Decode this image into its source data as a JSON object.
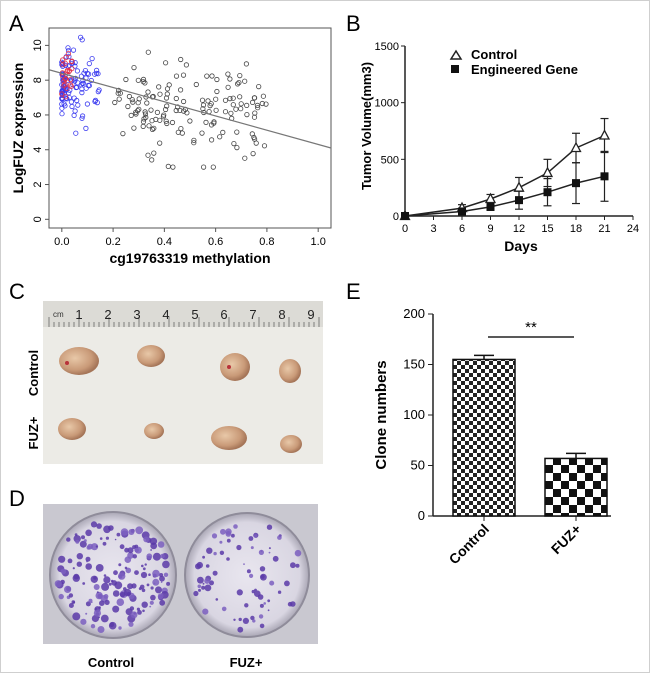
{
  "panel_labels": {
    "a": "A",
    "b": "B",
    "c": "C",
    "d": "D",
    "e": "E"
  },
  "chart_data": [
    {
      "panel": "A",
      "type": "scatter",
      "xlabel": "cg19763319 methylation",
      "ylabel": "LogFUZ expression",
      "xlim": [
        -0.05,
        1.05
      ],
      "ylim": [
        -0.5,
        11
      ],
      "xticks": [
        "0.0",
        "0.2",
        "0.4",
        "0.6",
        "0.8",
        "1.0"
      ],
      "yticks": [
        "0",
        "2",
        "4",
        "6",
        "8",
        "10"
      ],
      "regression": {
        "x": [
          -0.05,
          1.05
        ],
        "y": [
          8.6,
          4.1
        ]
      },
      "series": [
        {
          "name": "cluster_low",
          "color": "#3a3af0",
          "n": 110,
          "x_range": [
            0.0,
            0.15
          ],
          "y_mean": 8.0,
          "y_sd": 1.1
        },
        {
          "name": "cluster_red",
          "color": "#e0304a",
          "n": 25,
          "x_range": [
            0.0,
            0.04
          ],
          "y_mean": 8.2,
          "y_sd": 0.6
        },
        {
          "name": "cluster_high",
          "color": "#444444",
          "n": 150,
          "x_range": [
            0.2,
            0.8
          ],
          "y_mean": 6.5,
          "y_sd": 1.3
        }
      ]
    },
    {
      "panel": "B",
      "type": "line",
      "xlabel": "Days",
      "ylabel": "Tumor Volume(mm3)",
      "x": [
        0,
        6,
        9,
        12,
        15,
        18,
        21
      ],
      "xticks": [
        "0",
        "3",
        "6",
        "9",
        "12",
        "15",
        "18",
        "21",
        "24"
      ],
      "yticks": [
        "0",
        "500",
        "1000",
        "1500"
      ],
      "xlim": [
        0,
        24
      ],
      "ylim": [
        0,
        1500
      ],
      "series": [
        {
          "name": "Control",
          "marker": "triangle",
          "values": [
            0,
            70,
            150,
            250,
            380,
            600,
            710
          ],
          "errors": [
            0,
            30,
            40,
            90,
            120,
            130,
            150
          ]
        },
        {
          "name": "Engineered Gene",
          "marker": "square",
          "values": [
            0,
            40,
            80,
            140,
            210,
            290,
            350
          ],
          "errors": [
            0,
            20,
            30,
            80,
            120,
            180,
            220
          ]
        }
      ]
    },
    {
      "panel": "E",
      "type": "bar",
      "ylabel": "Clone numbers",
      "categories": [
        "Control",
        "FUZ+"
      ],
      "values": [
        155,
        57
      ],
      "errors": [
        4,
        5
      ],
      "ylim": [
        0,
        200
      ],
      "yticks": [
        "0",
        "50",
        "100",
        "150",
        "200"
      ],
      "significance": "**"
    }
  ],
  "panel_c": {
    "ruler_unit": "cm",
    "ruler_numbers": [
      "1",
      "2",
      "3",
      "4",
      "5",
      "6",
      "7",
      "8",
      "9"
    ],
    "row_labels": [
      "Control",
      "FUZ+"
    ]
  },
  "panel_d": {
    "labels": [
      "Control",
      "FUZ+"
    ]
  }
}
